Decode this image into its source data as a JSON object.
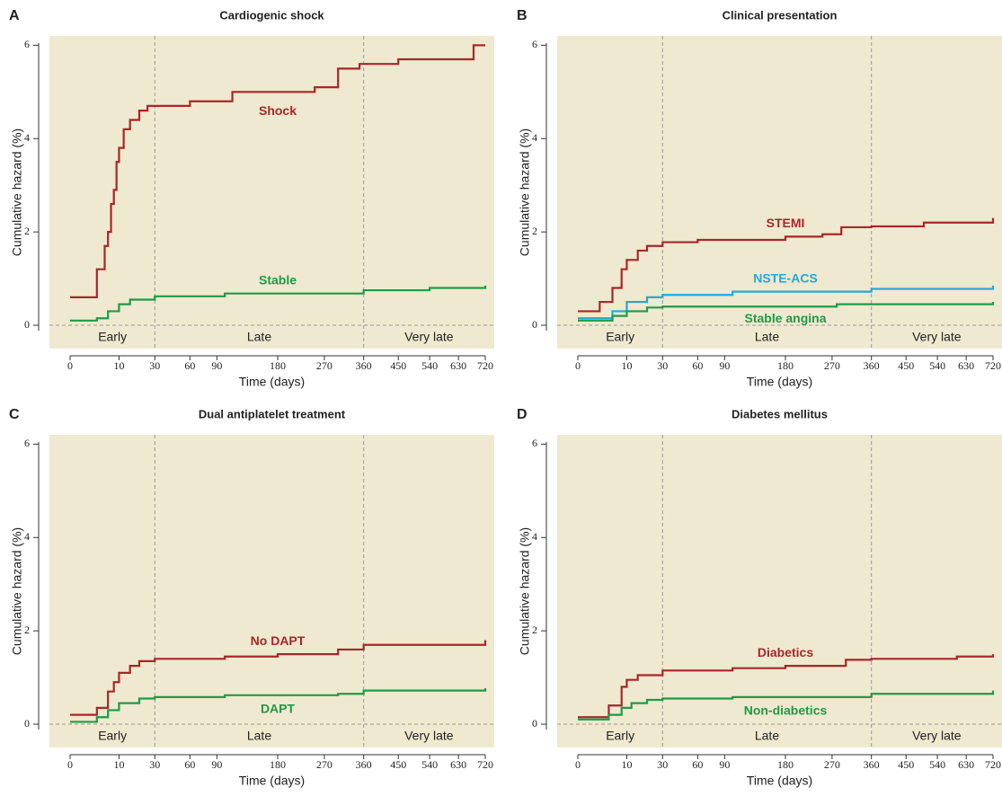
{
  "chart_data": [
    {
      "type": "step",
      "panel": "A",
      "title": "Cardiogenic shock",
      "xlabel": "Time (days)",
      "ylabel": "Cumulative hazard (%)",
      "xscale": "sqrt",
      "xlim": [
        0,
        720
      ],
      "xticks": [
        0,
        10,
        30,
        60,
        90,
        180,
        270,
        360,
        450,
        540,
        630,
        720
      ],
      "ylim": [
        -0.5,
        6.2
      ],
      "yticks": [
        0,
        2,
        4,
        6
      ],
      "periods": [
        "Early",
        "Late",
        "Very late"
      ],
      "period_bounds": [
        30,
        360
      ],
      "series": [
        {
          "name": "Shock",
          "color": "#a8262b",
          "x": [
            0,
            3,
            5,
            6,
            7,
            8,
            9,
            10,
            12,
            15,
            20,
            25,
            60,
            110,
            250,
            300,
            350,
            450,
            680,
            720
          ],
          "values": [
            0.6,
            1.2,
            1.7,
            2.0,
            2.6,
            2.9,
            3.5,
            3.8,
            4.2,
            4.4,
            4.6,
            4.7,
            4.8,
            5.0,
            5.1,
            5.5,
            5.6,
            5.7,
            6.0,
            6.0
          ]
        },
        {
          "name": "Stable",
          "color": "#1e9a48",
          "x": [
            0,
            3,
            6,
            10,
            15,
            30,
            100,
            360,
            540,
            720
          ],
          "values": [
            0.1,
            0.15,
            0.3,
            0.45,
            0.55,
            0.62,
            0.68,
            0.75,
            0.8,
            0.85
          ]
        }
      ]
    },
    {
      "type": "step",
      "panel": "B",
      "title": "Clinical presentation",
      "xlabel": "Time (days)",
      "ylabel": "Cumulative hazard (%)",
      "xscale": "sqrt",
      "xlim": [
        0,
        720
      ],
      "xticks": [
        0,
        10,
        30,
        60,
        90,
        180,
        270,
        360,
        450,
        540,
        630,
        720
      ],
      "ylim": [
        -0.5,
        6.2
      ],
      "yticks": [
        0,
        2,
        4,
        6
      ],
      "periods": [
        "Early",
        "Late",
        "Very late"
      ],
      "period_bounds": [
        30,
        360
      ],
      "series": [
        {
          "name": "STEMI",
          "color": "#a8262b",
          "x": [
            0,
            2,
            5,
            8,
            10,
            15,
            20,
            30,
            60,
            180,
            250,
            290,
            360,
            500,
            720
          ],
          "values": [
            0.3,
            0.5,
            0.8,
            1.2,
            1.4,
            1.6,
            1.7,
            1.78,
            1.83,
            1.9,
            1.95,
            2.1,
            2.12,
            2.2,
            2.3
          ]
        },
        {
          "name": "NSTE-ACS",
          "color": "#20a8e0",
          "x": [
            0,
            5,
            10,
            20,
            30,
            100,
            360,
            720
          ],
          "values": [
            0.15,
            0.3,
            0.5,
            0.6,
            0.65,
            0.72,
            0.78,
            0.85
          ]
        },
        {
          "name": "Stable angina",
          "color": "#1e9a48",
          "x": [
            0,
            5,
            10,
            20,
            30,
            280,
            720
          ],
          "values": [
            0.1,
            0.2,
            0.3,
            0.38,
            0.4,
            0.45,
            0.5
          ]
        }
      ]
    },
    {
      "type": "step",
      "panel": "C",
      "title": "Dual antiplatelet treatment",
      "xlabel": "Time (days)",
      "ylabel": "Cumulative hazard (%)",
      "xscale": "sqrt",
      "xlim": [
        0,
        720
      ],
      "xticks": [
        0,
        10,
        30,
        60,
        90,
        180,
        270,
        360,
        450,
        540,
        630,
        720
      ],
      "ylim": [
        -0.5,
        6.2
      ],
      "yticks": [
        0,
        2,
        4,
        6
      ],
      "periods": [
        "Early",
        "Late",
        "Very late"
      ],
      "period_bounds": [
        30,
        360
      ],
      "series": [
        {
          "name": "No DAPT",
          "color": "#a8262b",
          "x": [
            0,
            3,
            6,
            8,
            10,
            15,
            20,
            30,
            100,
            180,
            300,
            360,
            720
          ],
          "values": [
            0.2,
            0.35,
            0.7,
            0.9,
            1.1,
            1.25,
            1.35,
            1.4,
            1.45,
            1.5,
            1.6,
            1.7,
            1.8
          ]
        },
        {
          "name": "DAPT",
          "color": "#1e9a48",
          "x": [
            0,
            3,
            6,
            10,
            20,
            30,
            100,
            300,
            360,
            720
          ],
          "values": [
            0.05,
            0.15,
            0.3,
            0.45,
            0.55,
            0.58,
            0.62,
            0.65,
            0.72,
            0.77
          ]
        }
      ]
    },
    {
      "type": "step",
      "panel": "D",
      "title": "Diabetes mellitus",
      "xlabel": "Time (days)",
      "ylabel": "Cumulative hazard (%)",
      "xscale": "sqrt",
      "xlim": [
        0,
        720
      ],
      "xticks": [
        0,
        10,
        30,
        60,
        90,
        180,
        270,
        360,
        450,
        540,
        630,
        720
      ],
      "ylim": [
        -0.5,
        6.2
      ],
      "yticks": [
        0,
        2,
        4,
        6
      ],
      "periods": [
        "Early",
        "Late",
        "Very late"
      ],
      "period_bounds": [
        30,
        360
      ],
      "series": [
        {
          "name": "Diabetics",
          "color": "#a8262b",
          "x": [
            0,
            4,
            8,
            10,
            15,
            30,
            100,
            180,
            300,
            360,
            600,
            720
          ],
          "values": [
            0.15,
            0.4,
            0.8,
            0.95,
            1.05,
            1.15,
            1.2,
            1.25,
            1.38,
            1.4,
            1.45,
            1.5
          ]
        },
        {
          "name": "Non-diabetics",
          "color": "#1e9a48",
          "x": [
            0,
            4,
            8,
            12,
            20,
            30,
            100,
            360,
            720
          ],
          "values": [
            0.1,
            0.2,
            0.35,
            0.45,
            0.52,
            0.55,
            0.58,
            0.65,
            0.72
          ]
        }
      ]
    }
  ]
}
